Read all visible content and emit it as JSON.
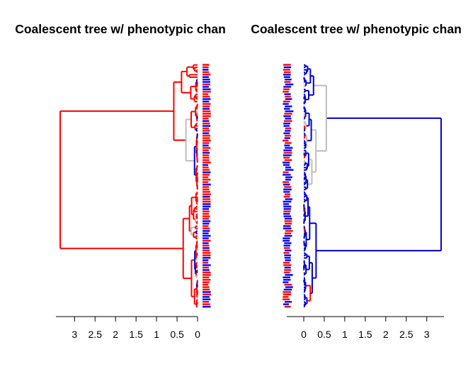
{
  "colors": {
    "state_a": "#ff0000",
    "state_b": "#0000cd",
    "unresolved": "#bebebe",
    "axis": "#000000",
    "tip_red": "#ff0000",
    "tip_blue": "#0000ff"
  },
  "chart_data": [
    {
      "type": "dendrogram",
      "title": "Coalescent tree w/ phenotypic chan",
      "orientation": "root-left",
      "x_axis": {
        "reversed": true,
        "ticks": [
          3,
          2.5,
          2,
          1.5,
          1,
          0.5,
          0
        ],
        "tick_labels": [
          "3",
          "2.5",
          "2",
          "1.5",
          "1",
          "0.5",
          "0"
        ],
        "xlim": [
          3.5,
          0
        ]
      },
      "root_height": 3.35,
      "clade_heights": {
        "upper": 0.58,
        "lower": 0.35
      },
      "dominant_branch_color": "red",
      "tip_count": 100
    },
    {
      "type": "dendrogram",
      "title": "Coalescent tree w/ phenotypic chan",
      "orientation": "root-right",
      "x_axis": {
        "reversed": false,
        "ticks": [
          0,
          0.5,
          1,
          1.5,
          2,
          2.5,
          3
        ],
        "tick_labels": [
          "0",
          "0.5",
          "1",
          "1.5",
          "2",
          "2.5",
          "3"
        ],
        "xlim": [
          0,
          3.5
        ]
      },
      "root_height": 3.35,
      "clade_heights": {
        "upper": 0.55,
        "lower": 0.3
      },
      "dominant_branch_color": "blue",
      "tip_count": 100
    }
  ]
}
